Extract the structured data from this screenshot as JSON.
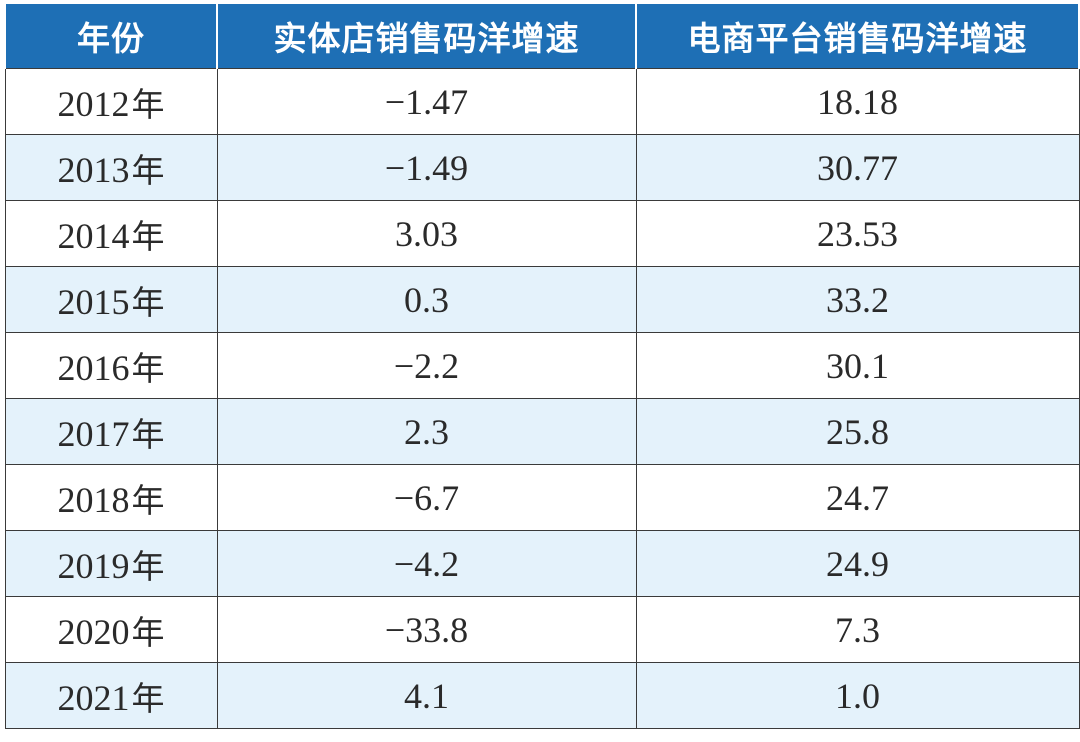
{
  "table": {
    "headers": [
      "年份",
      "实体店销售码洋增速",
      "电商平台销售码洋增速"
    ],
    "rows": [
      {
        "year": "2012",
        "suffix": "年",
        "store": "−1.47",
        "online": "18.18"
      },
      {
        "year": "2013",
        "suffix": "年",
        "store": "−1.49",
        "online": "30.77"
      },
      {
        "year": "2014",
        "suffix": "年",
        "store": "3.03",
        "online": "23.53"
      },
      {
        "year": "2015",
        "suffix": "年",
        "store": "0.3",
        "online": "33.2"
      },
      {
        "year": "2016",
        "suffix": "年",
        "store": "−2.2",
        "online": "30.1"
      },
      {
        "year": "2017",
        "suffix": "年",
        "store": "2.3",
        "online": "25.8"
      },
      {
        "year": "2018",
        "suffix": "年",
        "store": "−6.7",
        "online": "24.7"
      },
      {
        "year": "2019",
        "suffix": "年",
        "store": "−4.2",
        "online": "24.9"
      },
      {
        "year": "2020",
        "suffix": "年",
        "store": "−33.8",
        "online": "7.3"
      },
      {
        "year": "2021",
        "suffix": "年",
        "store": "4.1",
        "online": "1.0"
      }
    ]
  },
  "colors": {
    "header_bg": "#1e6fb5",
    "header_text": "#ffffff",
    "row_alt_bg": "#e4f2fb",
    "border": "#3a3a3a"
  }
}
